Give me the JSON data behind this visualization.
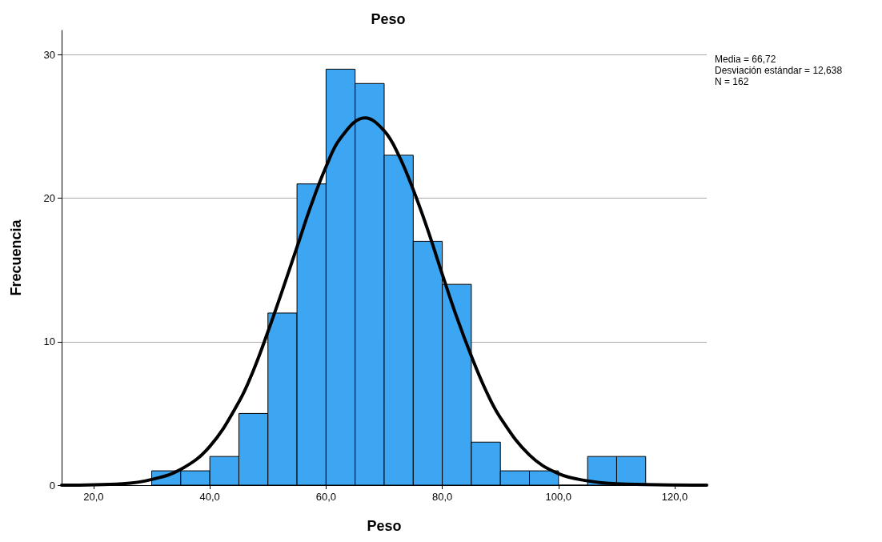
{
  "chart_data": {
    "type": "histogram",
    "title": "Peso",
    "xlabel": "Peso",
    "ylabel": "Frecuencia",
    "bins": [
      30,
      35,
      40,
      45,
      50,
      55,
      60,
      65,
      70,
      75,
      80,
      85,
      90,
      95,
      100,
      105,
      110,
      115
    ],
    "values": [
      1,
      1,
      2,
      5,
      12,
      21,
      29,
      28,
      23,
      17,
      14,
      3,
      1,
      1,
      0,
      2,
      2
    ],
    "color": "#3ca6f2",
    "series": [
      {
        "type": "line",
        "color": "#000000",
        "x": [
          14.5,
          25,
          30,
          35,
          40,
          45,
          47.5,
          50,
          52.5,
          55,
          57.5,
          60,
          62.5,
          66.7,
          70,
          72.5,
          75,
          77.5,
          80,
          82.5,
          85,
          87.5,
          90,
          95,
          100,
          105,
          110,
          125.5
        ],
        "values": [
          0.0,
          0.1,
          0.4,
          1.1,
          2.7,
          5.8,
          8.0,
          10.7,
          13.6,
          16.6,
          19.6,
          22.2,
          24.2,
          25.6,
          24.7,
          23.0,
          20.6,
          17.8,
          14.7,
          11.7,
          9.0,
          6.6,
          4.7,
          2.1,
          0.8,
          0.3,
          0.1,
          0.0
        ]
      }
    ],
    "xlim": [
      14.5,
      125.5
    ],
    "xticks": [
      {
        "value": 20,
        "label": "20,0"
      },
      {
        "value": 40,
        "label": "40,0"
      },
      {
        "value": 60,
        "label": "60,0"
      },
      {
        "value": 80,
        "label": "80,0"
      },
      {
        "value": 100,
        "label": "100,0"
      },
      {
        "value": 120,
        "label": "120,0"
      }
    ],
    "ylim": [
      0,
      31.7
    ],
    "yticks": [
      0,
      10,
      20,
      30
    ],
    "grid": "y",
    "annotations": [
      "Media = 66,72",
      "Desviación estándar = 12,638",
      "N = 162"
    ]
  }
}
